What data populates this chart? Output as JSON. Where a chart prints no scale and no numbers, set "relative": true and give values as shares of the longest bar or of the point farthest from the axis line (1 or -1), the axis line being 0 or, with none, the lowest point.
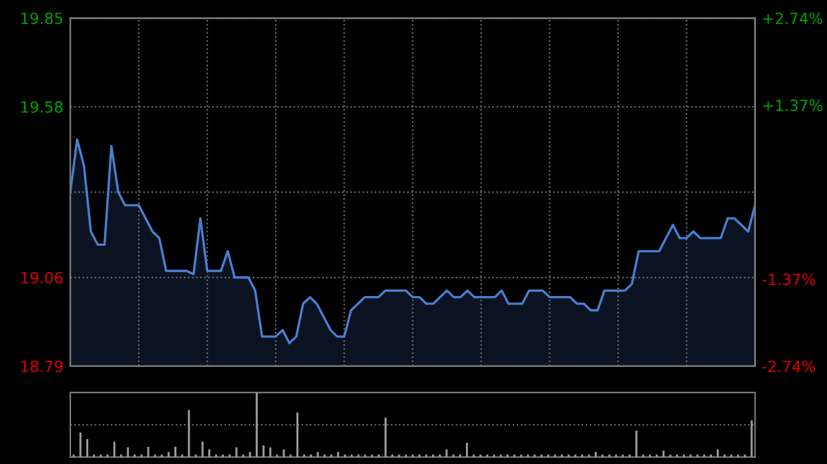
{
  "chart_data": [
    {
      "type": "area",
      "color": "#4a7fd0",
      "categories": [
        null,
        null,
        null,
        null,
        null,
        null,
        null,
        null,
        null,
        null,
        null,
        null,
        null,
        null,
        null,
        null,
        null,
        null,
        null,
        null,
        null,
        null,
        null,
        null,
        null,
        null,
        null,
        null,
        null,
        null,
        null,
        null,
        null,
        null,
        null,
        null,
        null,
        null,
        null,
        null,
        null,
        null,
        null,
        null,
        null,
        null,
        null,
        null,
        null,
        null,
        null,
        null,
        null,
        null,
        null,
        null,
        null,
        null,
        null,
        null,
        null,
        null,
        null,
        null,
        null,
        null,
        null,
        null,
        null,
        null,
        null,
        null,
        null,
        null,
        null,
        null,
        null,
        null,
        null,
        null,
        null,
        null,
        null,
        null,
        null,
        null,
        null,
        null,
        null,
        null,
        null,
        null,
        null,
        null,
        null,
        null,
        null,
        null,
        null,
        null,
        null
      ],
      "values": [
        19.32,
        19.48,
        19.4,
        19.2,
        19.16,
        19.16,
        19.46,
        19.32,
        19.28,
        19.28,
        19.28,
        19.24,
        19.2,
        19.18,
        19.08,
        19.08,
        19.08,
        19.08,
        19.07,
        19.24,
        19.08,
        19.08,
        19.08,
        19.14,
        19.06,
        19.06,
        19.06,
        19.02,
        18.88,
        18.88,
        18.88,
        18.9,
        18.86,
        18.88,
        18.98,
        19.0,
        18.98,
        18.94,
        18.9,
        18.88,
        18.88,
        18.96,
        18.98,
        19.0,
        19.0,
        19.0,
        19.02,
        19.02,
        19.02,
        19.02,
        19.0,
        19.0,
        18.98,
        18.98,
        19.0,
        19.02,
        19.0,
        19.0,
        19.02,
        19.0,
        19.0,
        19.0,
        19.0,
        19.02,
        18.98,
        18.98,
        18.98,
        19.02,
        19.02,
        19.02,
        19.0,
        19.0,
        19.0,
        19.0,
        18.98,
        18.98,
        18.96,
        18.96,
        19.02,
        19.02,
        19.02,
        19.02,
        19.04,
        19.14,
        19.14,
        19.14,
        19.14,
        19.18,
        19.22,
        19.18,
        19.18,
        19.2,
        19.18,
        19.18,
        19.18,
        19.18,
        19.24,
        19.24,
        19.22,
        19.2,
        19.28
      ],
      "ylim": [
        18.79,
        19.85
      ],
      "yticks": [
        18.79,
        19.06,
        {
          "value": 19.32,
          "label": null
        },
        19.58,
        19.85
      ],
      "y2lim": [
        -2.74,
        2.74
      ],
      "y2ticks": [
        {
          "value": -2.74,
          "label": "-2.74%"
        },
        {
          "value": -1.37,
          "label": "-1.37%"
        },
        {
          "value": 0,
          "label": null
        },
        {
          "value": 1.37,
          "label": "+1.37%"
        },
        {
          "value": 2.74,
          "label": "+2.74%"
        }
      ],
      "grid": true
    },
    {
      "type": "bar",
      "color": "#9a9a9a",
      "relative": true,
      "categories": [
        null,
        null,
        null,
        null,
        null,
        null,
        null,
        null,
        null,
        null,
        null,
        null,
        null,
        null,
        null,
        null,
        null,
        null,
        null,
        null,
        null,
        null,
        null,
        null,
        null,
        null,
        null,
        null,
        null,
        null,
        null,
        null,
        null,
        null,
        null,
        null,
        null,
        null,
        null,
        null,
        null,
        null,
        null,
        null,
        null,
        null,
        null,
        null,
        null,
        null,
        null,
        null,
        null,
        null,
        null,
        null,
        null,
        null,
        null,
        null,
        null,
        null,
        null,
        null,
        null,
        null,
        null,
        null,
        null,
        null,
        null,
        null,
        null,
        null,
        null,
        null,
        null,
        null,
        null,
        null,
        null,
        null,
        null,
        null,
        null,
        null,
        null,
        null,
        null,
        null,
        null,
        null,
        null,
        null,
        null,
        null,
        null,
        null,
        null,
        null,
        null
      ],
      "values": [
        0.04,
        0.38,
        0.28,
        0.04,
        0.04,
        0.04,
        0.24,
        0.04,
        0.15,
        0.04,
        0.04,
        0.16,
        0.04,
        0.04,
        0.08,
        0.16,
        0.04,
        0.73,
        0.04,
        0.24,
        0.12,
        0.04,
        0.04,
        0.04,
        0.15,
        0.04,
        0.08,
        1.0,
        0.18,
        0.15,
        0.04,
        0.12,
        0.04,
        0.69,
        0.04,
        0.04,
        0.08,
        0.04,
        0.04,
        0.08,
        0.04,
        0.04,
        0.04,
        0.04,
        0.04,
        0.04,
        0.61,
        0.04,
        0.04,
        0.04,
        0.04,
        0.04,
        0.04,
        0.04,
        0.04,
        0.12,
        0.04,
        0.04,
        0.22,
        0.04,
        0.04,
        0.04,
        0.04,
        0.04,
        0.04,
        0.04,
        0.04,
        0.04,
        0.04,
        0.04,
        0.04,
        0.04,
        0.04,
        0.04,
        0.04,
        0.04,
        0.04,
        0.08,
        0.04,
        0.04,
        0.04,
        0.04,
        0.04,
        0.41,
        0.04,
        0.04,
        0.04,
        0.1,
        0.04,
        0.04,
        0.04,
        0.04,
        0.04,
        0.04,
        0.04,
        0.12,
        0.04,
        0.04,
        0.04,
        0.04,
        0.57
      ],
      "ref_lines": [
        {
          "axis": "y",
          "value": 0.5,
          "line_style": "dotted"
        }
      ]
    }
  ]
}
